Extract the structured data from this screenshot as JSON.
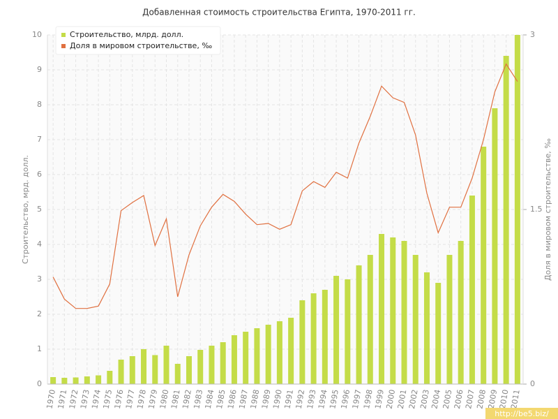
{
  "chart_data": {
    "type": "bar_line",
    "title": "Добавленная стоимость строительства Египта, 1970-2011 гг.",
    "y_label": "Строительство, мрд. долл.",
    "y2_label": "Доля в мировом строительстве, ‰",
    "categories": [
      "1970",
      "1971",
      "1972",
      "1973",
      "1974",
      "1975",
      "1976",
      "1977",
      "1978",
      "1979",
      "1980",
      "1981",
      "1982",
      "1983",
      "1984",
      "1985",
      "1986",
      "1987",
      "1988",
      "1989",
      "1990",
      "1991",
      "1992",
      "1993",
      "1994",
      "1995",
      "1996",
      "1997",
      "1998",
      "1999",
      "2000",
      "2001",
      "2002",
      "2003",
      "2004",
      "2005",
      "2006",
      "2007",
      "2008",
      "2009",
      "2010",
      "2011"
    ],
    "series": [
      {
        "name": "Строительство, млрд. долл.",
        "type": "bar",
        "color": "#c4dc48",
        "values": [
          0.2,
          0.18,
          0.19,
          0.22,
          0.25,
          0.38,
          0.7,
          0.8,
          1.0,
          0.83,
          1.1,
          0.58,
          0.8,
          0.98,
          1.1,
          1.2,
          1.4,
          1.5,
          1.6,
          1.7,
          1.8,
          1.9,
          2.4,
          2.6,
          2.7,
          3.1,
          3.0,
          3.4,
          3.7,
          4.3,
          4.2,
          4.1,
          3.7,
          3.2,
          2.9,
          3.7,
          4.1,
          5.4,
          6.8,
          7.9,
          9.4,
          10.0
        ]
      },
      {
        "name": "Доля в мировом строительстве, ‰",
        "type": "line",
        "color": "#e07040",
        "axis": "y2",
        "values": [
          0.92,
          0.73,
          0.65,
          0.65,
          0.67,
          0.86,
          1.49,
          1.56,
          1.62,
          1.19,
          1.42,
          0.75,
          1.11,
          1.36,
          1.52,
          1.63,
          1.57,
          1.46,
          1.37,
          1.38,
          1.33,
          1.37,
          1.66,
          1.74,
          1.69,
          1.82,
          1.77,
          2.07,
          2.3,
          2.56,
          2.46,
          2.42,
          2.14,
          1.64,
          1.3,
          1.52,
          1.52,
          1.77,
          2.1,
          2.51,
          2.75,
          2.6
        ]
      }
    ],
    "ylim": [
      0,
      10
    ],
    "yticks": [
      0,
      1,
      2,
      3,
      4,
      5,
      6,
      7,
      8,
      9,
      10
    ],
    "y2lim": [
      0,
      3
    ],
    "y2ticks": [
      0,
      1.5,
      3
    ],
    "grid": true,
    "legend": "top-left",
    "watermark": "http://be5.biz/"
  }
}
